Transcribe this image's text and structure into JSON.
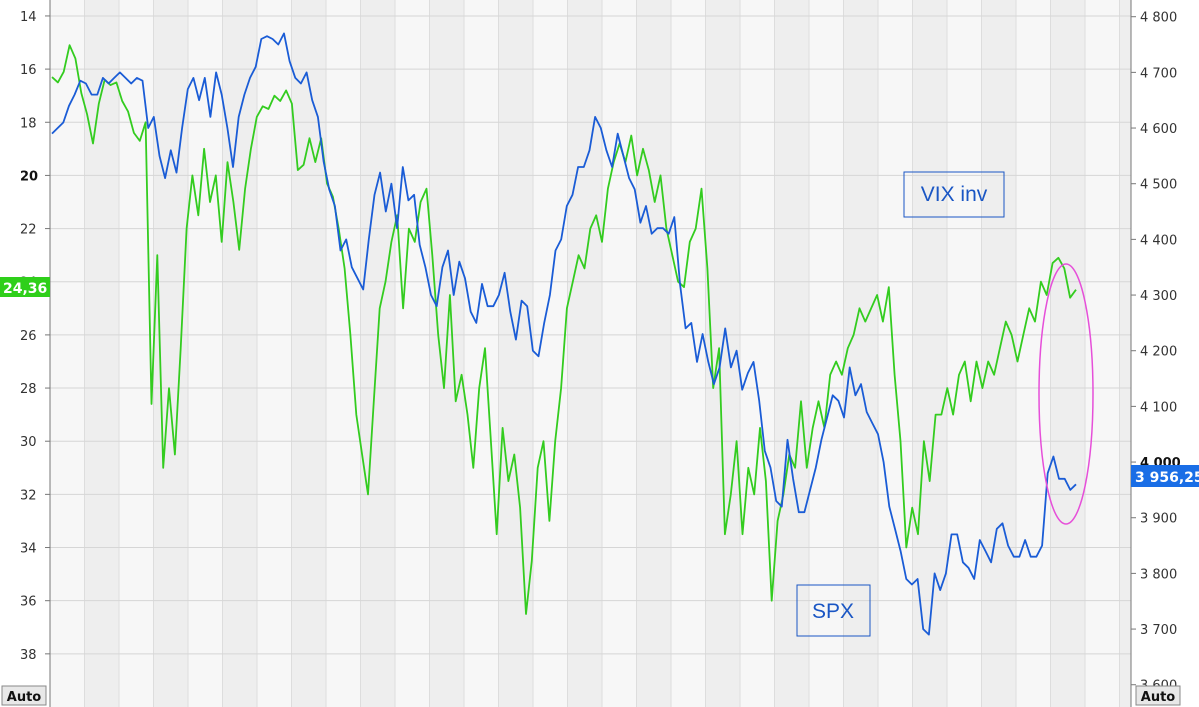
{
  "chart_data": {
    "type": "line",
    "title": "",
    "grid": true,
    "left_axis": {
      "ylim": [
        40,
        13.4
      ],
      "inverted": true,
      "ticks": [
        "14",
        "16",
        "18",
        "20",
        "22",
        "24",
        "26",
        "28",
        "30",
        "32",
        "34",
        "36",
        "38"
      ],
      "bold_tick": "20",
      "auto_label": "Auto"
    },
    "right_axis": {
      "ylim": [
        3560,
        4830
      ],
      "ticks": [
        "4 800",
        "4 700",
        "4 600",
        "4 500",
        "4 400",
        "4 300",
        "4 200",
        "4 100",
        "4 000",
        "3 900",
        "3 800",
        "3 700",
        "3 600"
      ],
      "bold_tick": "4 000",
      "auto_label": "Auto"
    },
    "series": [
      {
        "name": "VIX inv",
        "axis": "left",
        "color": "#33cc1f",
        "last_value_label": "24,36",
        "values": [
          16.3,
          16.5,
          16.1,
          15.1,
          15.6,
          16.9,
          17.7,
          18.8,
          17.3,
          16.4,
          16.6,
          16.5,
          17.2,
          17.6,
          18.4,
          18.7,
          18.0,
          28.6,
          23.0,
          31.0,
          28.0,
          30.5,
          26.5,
          22.0,
          20.0,
          21.5,
          19.0,
          21.0,
          20.0,
          22.5,
          19.5,
          21.0,
          22.8,
          20.5,
          19.0,
          17.8,
          17.4,
          17.5,
          17.0,
          17.2,
          16.8,
          17.3,
          19.8,
          19.6,
          18.6,
          19.5,
          18.6,
          20.3,
          20.8,
          22.0,
          23.5,
          26.0,
          29.0,
          30.5,
          32.0,
          28.5,
          25.0,
          24.0,
          22.5,
          21.5,
          25.0,
          22.0,
          22.5,
          21.0,
          20.5,
          23.0,
          26.0,
          28.0,
          24.5,
          28.5,
          27.5,
          29.0,
          31.0,
          28.0,
          26.5,
          30.0,
          33.5,
          29.5,
          31.5,
          30.5,
          32.5,
          36.5,
          34.5,
          31.0,
          30.0,
          33.0,
          30.0,
          28.0,
          25.0,
          24.0,
          23.0,
          23.5,
          22.0,
          21.5,
          22.5,
          20.5,
          19.5,
          18.8,
          19.5,
          18.5,
          20.0,
          19.0,
          19.8,
          21.0,
          20.0,
          22.0,
          23.0,
          24.0,
          24.2,
          22.5,
          22.0,
          20.5,
          23.5,
          28.0,
          26.5,
          33.5,
          32.0,
          30.0,
          33.5,
          31.0,
          32.0,
          29.5,
          31.5,
          36.0,
          33.0,
          32.0,
          30.5,
          31.0,
          28.5,
          31.0,
          29.5,
          28.5,
          29.5,
          27.5,
          27.0,
          27.5,
          26.5,
          26.0,
          25.0,
          25.5,
          25.0,
          24.5,
          25.5,
          24.2,
          27.5,
          30.0,
          34.0,
          32.5,
          33.5,
          30.0,
          31.5,
          29.0,
          29.0,
          28.0,
          29.0,
          27.5,
          27.0,
          28.5,
          27.0,
          28.0,
          27.0,
          27.5,
          26.5,
          25.5,
          26.0,
          27.0,
          26.0,
          25.0,
          25.5,
          24.0,
          24.5,
          23.3,
          23.1,
          23.5,
          24.6,
          24.3
        ]
      },
      {
        "name": "SPX",
        "axis": "right",
        "color": "#1a5cd6",
        "last_value_label": "3 956,25",
        "values": [
          4590,
          4600,
          4610,
          4640,
          4660,
          4685,
          4680,
          4660,
          4660,
          4690,
          4680,
          4690,
          4700,
          4690,
          4680,
          4690,
          4685,
          4600,
          4620,
          4550,
          4510,
          4560,
          4520,
          4600,
          4670,
          4690,
          4650,
          4690,
          4620,
          4700,
          4660,
          4600,
          4530,
          4620,
          4660,
          4690,
          4710,
          4760,
          4765,
          4760,
          4750,
          4770,
          4720,
          4690,
          4680,
          4700,
          4650,
          4620,
          4540,
          4490,
          4460,
          4380,
          4400,
          4350,
          4330,
          4310,
          4400,
          4480,
          4520,
          4450,
          4500,
          4420,
          4530,
          4470,
          4480,
          4390,
          4350,
          4300,
          4280,
          4350,
          4380,
          4300,
          4360,
          4330,
          4270,
          4250,
          4320,
          4280,
          4280,
          4300,
          4340,
          4270,
          4220,
          4290,
          4280,
          4200,
          4190,
          4250,
          4300,
          4380,
          4400,
          4460,
          4480,
          4530,
          4530,
          4560,
          4620,
          4600,
          4560,
          4530,
          4590,
          4550,
          4510,
          4490,
          4430,
          4460,
          4410,
          4420,
          4420,
          4410,
          4440,
          4320,
          4240,
          4250,
          4180,
          4230,
          4180,
          4140,
          4170,
          4240,
          4170,
          4200,
          4130,
          4160,
          4180,
          4110,
          4020,
          3990,
          3930,
          3920,
          4040,
          3970,
          3910,
          3910,
          3950,
          3990,
          4040,
          4080,
          4120,
          4110,
          4080,
          4170,
          4120,
          4140,
          4090,
          4070,
          4050,
          4000,
          3920,
          3880,
          3840,
          3790,
          3780,
          3790,
          3700,
          3690,
          3800,
          3770,
          3800,
          3870,
          3870,
          3820,
          3810,
          3790,
          3860,
          3840,
          3820,
          3880,
          3890,
          3850,
          3830,
          3830,
          3860,
          3830,
          3830,
          3850,
          3980,
          4010,
          3970,
          3970,
          3950,
          3960
        ]
      }
    ],
    "annotations": [
      {
        "text": "VIX inv",
        "color": "#1a56c4"
      },
      {
        "text": "SPX",
        "color": "#1a56c4"
      }
    ],
    "highlight": {
      "shape": "ellipse",
      "color": "#e64fd9"
    }
  }
}
